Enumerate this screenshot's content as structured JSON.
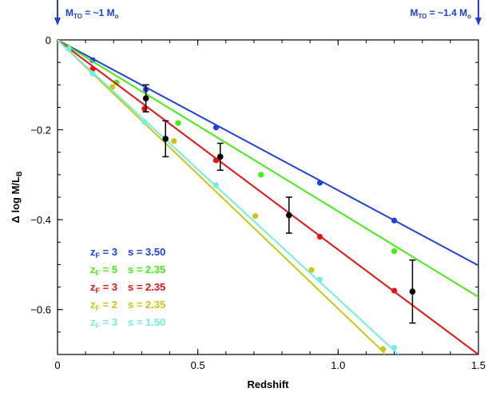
{
  "annotations": {
    "left": {
      "text": "M_TO = ~1 M_o",
      "main": "M",
      "sub": "TO",
      "rest": " = ~1 M",
      "end": "o",
      "color": "#1a3fe6"
    },
    "right": {
      "text": "M_TO = ~1.4 M_o",
      "main": "M",
      "sub": "TO",
      "rest": " = ~1.4 M",
      "end": "o",
      "color": "#1a3fe6"
    }
  },
  "chart_data": {
    "type": "line",
    "title": "",
    "xlabel": "Redshift",
    "ylabel": {
      "main": "Δ log M/L",
      "sub": "B"
    },
    "xlim": [
      0,
      1.5
    ],
    "ylim": [
      -0.7,
      0.0
    ],
    "xticks": [
      {
        "v": 0,
        "label": "0"
      },
      {
        "v": 0.5,
        "label": "0.5"
      },
      {
        "v": 1.0,
        "label": "1.0"
      },
      {
        "v": 1.5,
        "label": "1.5"
      }
    ],
    "yticks": [
      {
        "v": 0,
        "label": "0"
      },
      {
        "v": -0.2,
        "label": "−0.2"
      },
      {
        "v": -0.4,
        "label": "−0.4"
      },
      {
        "v": -0.6,
        "label": "−0.6"
      }
    ],
    "grid": false,
    "legend_position": "bottom-left",
    "series": [
      {
        "name": "z_F = 3   s = 3.50",
        "zlabel": "z",
        "zsub": "F",
        "zval": " = 3",
        "slabel": "s = 3.50",
        "color": "#2040e0",
        "line_x": [
          0,
          1.5
        ],
        "line_y": [
          0,
          -0.502
        ],
        "x": [
          0.125,
          0.315,
          0.565,
          0.935,
          1.2
        ],
        "y": [
          -0.045,
          -0.11,
          -0.195,
          -0.318,
          -0.402
        ]
      },
      {
        "name": "z_F = 5   s = 2.35",
        "zlabel": "z",
        "zsub": "F",
        "zval": " = 5",
        "slabel": "s = 2.35",
        "color": "#44ee10",
        "line_x": [
          0,
          1.5
        ],
        "line_y": [
          0,
          -0.572
        ],
        "x": [
          0.04,
          0.21,
          0.43,
          0.725,
          1.2
        ],
        "y": [
          -0.018,
          -0.095,
          -0.185,
          -0.3,
          -0.47
        ]
      },
      {
        "name": "z_F = 3   s = 2.35",
        "zlabel": "z",
        "zsub": "F",
        "zval": " = 3",
        "slabel": "s = 2.35",
        "color": "#ee1010",
        "line_x": [
          0,
          1.5
        ],
        "line_y": [
          0,
          -0.7
        ],
        "x": [
          0.125,
          0.31,
          0.565,
          0.935,
          1.2
        ],
        "y": [
          -0.065,
          -0.153,
          -0.268,
          -0.438,
          -0.558
        ]
      },
      {
        "name": "z_F = 2   s = 2.35",
        "zlabel": "z",
        "zsub": "F",
        "zval": " = 2",
        "slabel": "s = 2.35",
        "color": "#c8c810",
        "line_x": [
          0,
          1.1625,
          1.165
        ],
        "line_y": [
          0,
          -0.695,
          -0.7
        ],
        "x": [
          0,
          0.195,
          0.415,
          0.705,
          0.905,
          1.16
        ],
        "y": [
          0,
          -0.105,
          -0.225,
          -0.392,
          -0.512,
          -0.688
        ]
      },
      {
        "name": "z_F = 3   s = 1.50",
        "zlabel": "z",
        "zsub": "F",
        "zval": " = 3",
        "slabel": "s = 1.50",
        "color": "#70f0e0",
        "line_x": [
          0,
          1.215
        ],
        "line_y": [
          0,
          -0.7
        ],
        "x": [
          0.04,
          0.125,
          0.31,
          0.565,
          0.935,
          1.2
        ],
        "y": [
          -0.02,
          -0.075,
          -0.183,
          -0.323,
          -0.533,
          -0.685
        ]
      }
    ],
    "observations": {
      "name": "data",
      "color": "#000000",
      "x": [
        0.315,
        0.385,
        0.58,
        0.825,
        1.265
      ],
      "y": [
        -0.13,
        -0.22,
        -0.26,
        -0.39,
        -0.56
      ],
      "err": [
        0.03,
        0.04,
        0.03,
        0.04,
        0.07
      ]
    }
  }
}
